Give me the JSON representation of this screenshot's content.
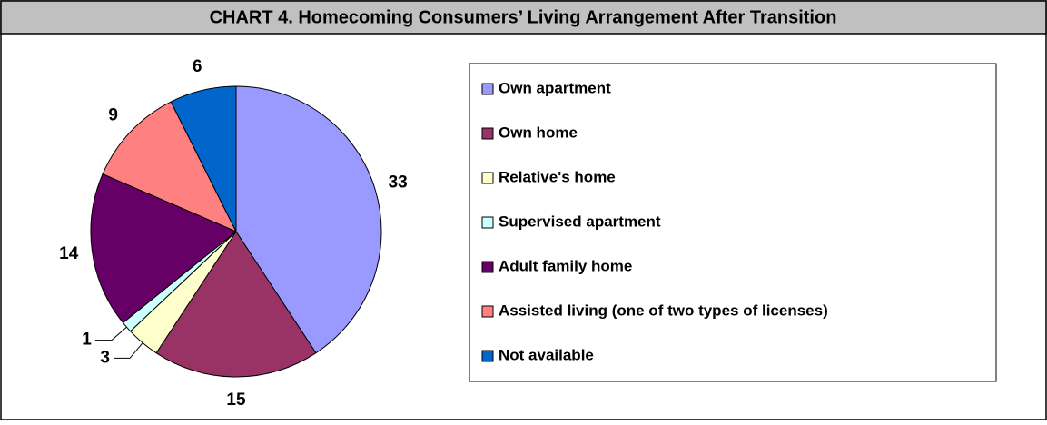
{
  "chart_data": {
    "type": "pie",
    "title": "CHART 4. Homecoming Consumers’ Living Arrangement After Transition",
    "categories": [
      "Own apartment",
      "Own home",
      "Relative's home",
      "Supervised apartment",
      "Adult family home",
      "Assisted living (one of two types of licenses)",
      "Not available"
    ],
    "values": [
      33,
      15,
      3,
      1,
      14,
      9,
      6
    ],
    "colors": [
      "#9999ff",
      "#993366",
      "#ffffcc",
      "#ccffff",
      "#660066",
      "#ff8080",
      "#0066cc"
    ],
    "legend": "right"
  }
}
